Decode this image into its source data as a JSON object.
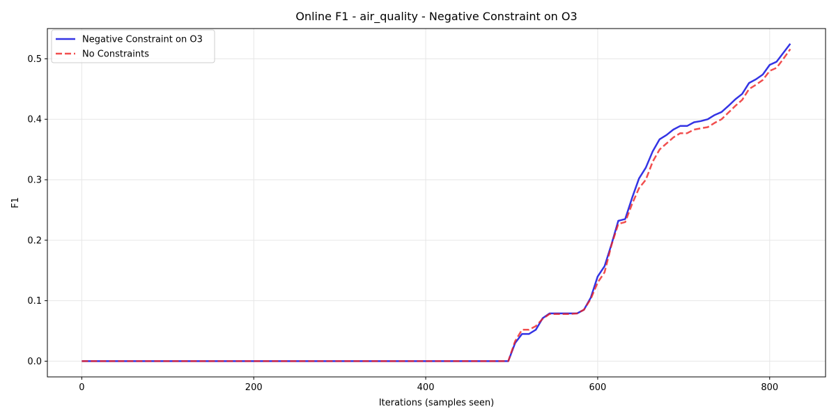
{
  "chart_data": {
    "type": "line",
    "title": "Online F1 - air_quality - Negative Constraint on O3",
    "xlabel": "Iterations (samples seen)",
    "ylabel": "F1",
    "xlim": [
      -40,
      865
    ],
    "ylim": [
      -0.026,
      0.55
    ],
    "xticks": [
      0,
      200,
      400,
      600,
      800
    ],
    "yticks": [
      0.0,
      0.1,
      0.2,
      0.3,
      0.4,
      0.5
    ],
    "xtick_labels": [
      "0",
      "200",
      "400",
      "600",
      "800"
    ],
    "ytick_labels": [
      "0.0",
      "0.1",
      "0.2",
      "0.3",
      "0.4",
      "0.5"
    ],
    "grid": true,
    "legend_position": "top-left",
    "series": [
      {
        "name": "Negative Constraint on O3",
        "color": "#0000dd",
        "style": "solid",
        "x": [
          0,
          100,
          200,
          300,
          400,
          496,
          504,
          512,
          520,
          528,
          536,
          544,
          552,
          560,
          568,
          576,
          584,
          592,
          600,
          608,
          616,
          624,
          632,
          640,
          648,
          656,
          664,
          672,
          680,
          688,
          696,
          704,
          712,
          720,
          728,
          736,
          744,
          752,
          760,
          768,
          776,
          784,
          792,
          800,
          808,
          816,
          824
        ],
        "values": [
          0.0,
          0.0,
          0.0,
          0.0,
          0.0,
          0.0,
          0.03,
          0.045,
          0.045,
          0.052,
          0.071,
          0.079,
          0.079,
          0.079,
          0.079,
          0.079,
          0.085,
          0.105,
          0.14,
          0.157,
          0.193,
          0.232,
          0.235,
          0.27,
          0.302,
          0.32,
          0.347,
          0.367,
          0.374,
          0.383,
          0.389,
          0.389,
          0.395,
          0.397,
          0.4,
          0.407,
          0.412,
          0.422,
          0.433,
          0.442,
          0.46,
          0.466,
          0.474,
          0.49,
          0.495,
          0.51,
          0.525
        ]
      },
      {
        "name": "No Constraints",
        "color": "#ee2222",
        "style": "dashed",
        "x": [
          0,
          100,
          200,
          300,
          400,
          496,
          504,
          512,
          520,
          528,
          536,
          544,
          552,
          560,
          568,
          576,
          584,
          592,
          600,
          608,
          616,
          624,
          632,
          640,
          648,
          656,
          664,
          672,
          680,
          688,
          696,
          704,
          712,
          720,
          728,
          736,
          744,
          752,
          760,
          768,
          776,
          784,
          792,
          800,
          808,
          816,
          824
        ],
        "values": [
          0.0,
          0.0,
          0.0,
          0.0,
          0.0,
          0.0,
          0.033,
          0.052,
          0.052,
          0.058,
          0.07,
          0.078,
          0.078,
          0.078,
          0.078,
          0.079,
          0.085,
          0.103,
          0.13,
          0.147,
          0.192,
          0.227,
          0.23,
          0.26,
          0.286,
          0.3,
          0.33,
          0.35,
          0.36,
          0.37,
          0.377,
          0.377,
          0.383,
          0.385,
          0.387,
          0.394,
          0.4,
          0.411,
          0.422,
          0.432,
          0.45,
          0.457,
          0.465,
          0.48,
          0.485,
          0.5,
          0.516
        ]
      }
    ]
  }
}
